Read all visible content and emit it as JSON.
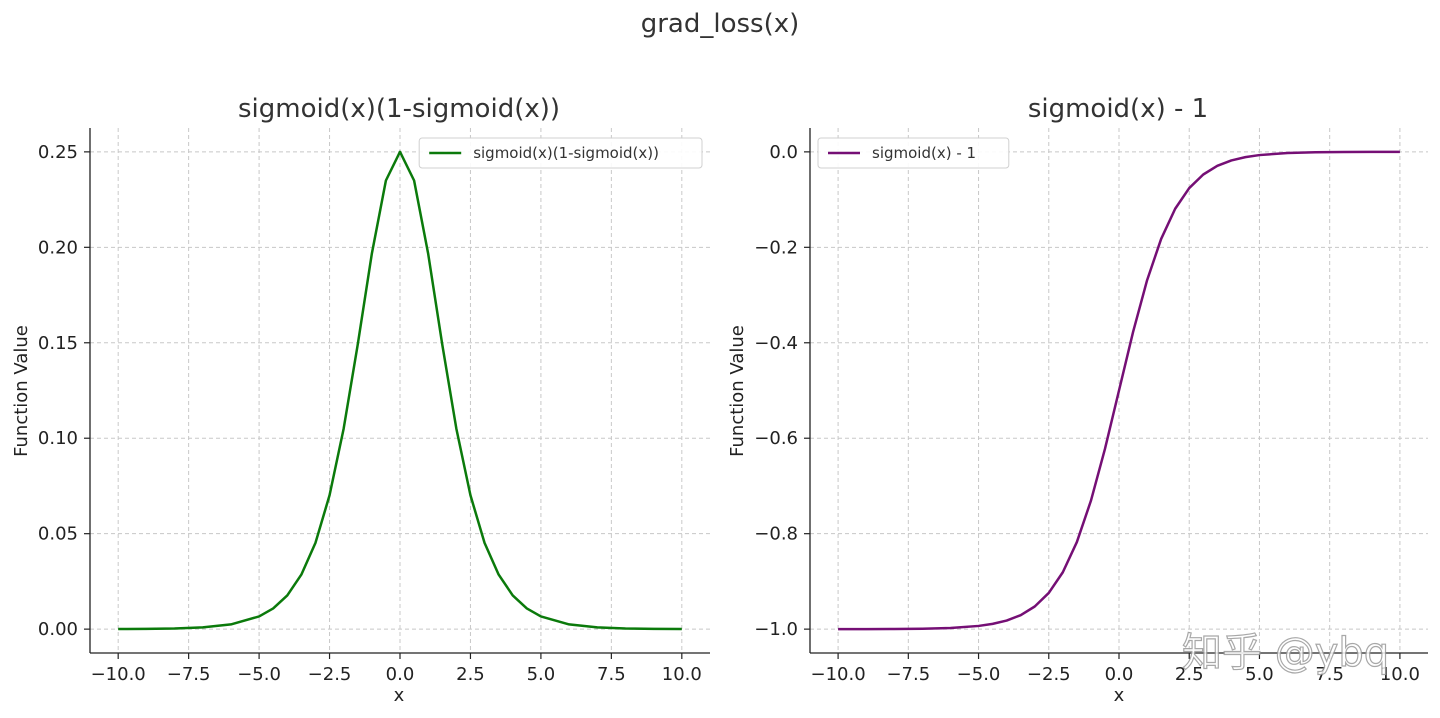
{
  "figure": {
    "suptitle": "grad_loss(x)",
    "watermark": "知乎 @ybq"
  },
  "chart_data": [
    {
      "type": "line",
      "title": "sigmoid(x)(1-sigmoid(x))",
      "xlabel": "x",
      "ylabel": "Function Value",
      "xlim": [
        -11,
        11
      ],
      "ylim": [
        -0.0125,
        0.2625
      ],
      "xticks": [
        -10,
        -7.5,
        -5,
        -2.5,
        0,
        2.5,
        5,
        7.5,
        10
      ],
      "xtick_labels": [
        "−10.0",
        "−7.5",
        "−5.0",
        "−2.5",
        "0.0",
        "2.5",
        "5.0",
        "7.5",
        "10.0"
      ],
      "yticks": [
        0,
        0.05,
        0.1,
        0.15,
        0.2,
        0.25
      ],
      "ytick_labels": [
        "0.00",
        "0.05",
        "0.10",
        "0.15",
        "0.20",
        "0.25"
      ],
      "grid": true,
      "legend_position": "top-right",
      "series": [
        {
          "name": "sigmoid(x)(1-sigmoid(x))",
          "color": "#0b7a0b",
          "x": [
            -10,
            -9,
            -8,
            -7,
            -6,
            -5,
            -4.5,
            -4,
            -3.5,
            -3,
            -2.5,
            -2,
            -1.5,
            -1,
            -0.5,
            0,
            0.5,
            1,
            1.5,
            2,
            2.5,
            3,
            3.5,
            4,
            4.5,
            5,
            6,
            7,
            8,
            9,
            10
          ],
          "y": [
            5e-05,
            0.00012,
            0.00034,
            0.00091,
            0.00247,
            0.00665,
            0.01085,
            0.01766,
            0.02857,
            0.04518,
            0.07011,
            0.10499,
            0.14905,
            0.19661,
            0.235,
            0.25,
            0.235,
            0.19661,
            0.14905,
            0.10499,
            0.07011,
            0.04518,
            0.02857,
            0.01766,
            0.01085,
            0.00665,
            0.00247,
            0.00091,
            0.00034,
            0.00012,
            5e-05
          ]
        }
      ]
    },
    {
      "type": "line",
      "title": "sigmoid(x) - 1",
      "xlabel": "x",
      "ylabel": "Function Value",
      "xlim": [
        -11,
        11
      ],
      "ylim": [
        -1.05,
        0.05
      ],
      "xticks": [
        -10,
        -7.5,
        -5,
        -2.5,
        0,
        2.5,
        5,
        7.5,
        10
      ],
      "xtick_labels": [
        "−10.0",
        "−7.5",
        "−5.0",
        "−2.5",
        "0.0",
        "2.5",
        "5.0",
        "7.5",
        "10.0"
      ],
      "yticks": [
        0,
        -0.2,
        -0.4,
        -0.6,
        -0.8,
        -1.0
      ],
      "ytick_labels": [
        "0.0",
        "−0.2",
        "−0.4",
        "−0.6",
        "−0.8",
        "−1.0"
      ],
      "grid": true,
      "legend_position": "top-left",
      "series": [
        {
          "name": "sigmoid(x) - 1",
          "color": "#750f75",
          "x": [
            -10,
            -9,
            -8,
            -7,
            -6,
            -5,
            -4.5,
            -4,
            -3.5,
            -3,
            -2.5,
            -2,
            -1.5,
            -1,
            -0.5,
            0,
            0.5,
            1,
            1.5,
            2,
            2.5,
            3,
            3.5,
            4,
            4.5,
            5,
            6,
            7,
            8,
            9,
            10
          ],
          "y": [
            -0.99995,
            -0.99988,
            -0.99966,
            -0.99909,
            -0.99753,
            -0.99331,
            -0.98901,
            -0.98201,
            -0.97069,
            -0.95257,
            -0.92414,
            -0.8808,
            -0.81757,
            -0.73106,
            -0.62246,
            -0.5,
            -0.37754,
            -0.26894,
            -0.18243,
            -0.1192,
            -0.07586,
            -0.04743,
            -0.02931,
            -0.01799,
            -0.01099,
            -0.00669,
            -0.00247,
            -0.00091,
            -0.00034,
            -0.00012,
            -5e-05
          ]
        }
      ]
    }
  ]
}
